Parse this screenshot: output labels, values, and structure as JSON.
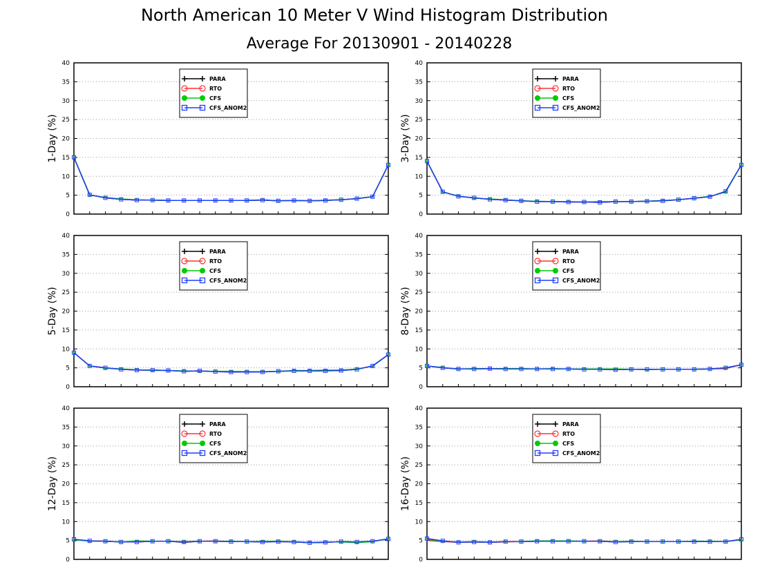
{
  "title": "North American 10 Meter V Wind Histogram Distribution",
  "subtitle": "Average For 20130901 - 20140228",
  "colors": {
    "PARA": "#000000",
    "RTO": "#ff3030",
    "CFS": "#00cc00",
    "CFS_ANOM2": "#1e3cff"
  },
  "chart_data": [
    {
      "type": "line",
      "ylabel": "1-Day (%)",
      "ylim": [
        0,
        40
      ],
      "yticks": [
        0,
        5,
        10,
        15,
        20,
        25,
        30,
        35,
        40
      ],
      "grid": true,
      "legend": "top-center",
      "x": [
        1,
        2,
        3,
        4,
        5,
        6,
        7,
        8,
        9,
        10,
        11,
        12,
        13,
        14,
        15,
        16,
        17,
        18,
        19,
        20,
        21
      ],
      "series": [
        {
          "name": "PARA",
          "values": [
            15,
            5.1,
            4.3,
            3.9,
            3.7,
            3.7,
            3.6,
            3.6,
            3.6,
            3.6,
            3.6,
            3.6,
            3.7,
            3.5,
            3.6,
            3.5,
            3.6,
            3.8,
            4.1,
            4.6,
            13
          ]
        },
        {
          "name": "RTO",
          "values": [
            15,
            5.1,
            4.3,
            3.9,
            3.7,
            3.7,
            3.6,
            3.6,
            3.6,
            3.6,
            3.6,
            3.6,
            3.7,
            3.5,
            3.6,
            3.5,
            3.6,
            3.8,
            4.1,
            4.6,
            13
          ]
        },
        {
          "name": "CFS",
          "values": [
            15,
            5.0,
            4.4,
            4.0,
            3.8,
            3.7,
            3.6,
            3.6,
            3.6,
            3.6,
            3.6,
            3.6,
            3.8,
            3.5,
            3.6,
            3.5,
            3.7,
            3.8,
            4.1,
            4.6,
            13
          ]
        },
        {
          "name": "CFS_ANOM2",
          "values": [
            15,
            5.1,
            4.3,
            3.9,
            3.7,
            3.7,
            3.6,
            3.6,
            3.6,
            3.6,
            3.6,
            3.6,
            3.7,
            3.5,
            3.6,
            3.5,
            3.6,
            3.8,
            4.1,
            4.6,
            13
          ]
        }
      ]
    },
    {
      "type": "line",
      "ylabel": "3-Day (%)",
      "ylim": [
        0,
        40
      ],
      "yticks": [
        0,
        5,
        10,
        15,
        20,
        25,
        30,
        35,
        40
      ],
      "grid": true,
      "legend": "top-center",
      "x": [
        1,
        2,
        3,
        4,
        5,
        6,
        7,
        8,
        9,
        10,
        11,
        12,
        13,
        14,
        15,
        16,
        17,
        18,
        19,
        20,
        21
      ],
      "series": [
        {
          "name": "PARA",
          "values": [
            14,
            5.9,
            4.7,
            4.3,
            3.9,
            3.7,
            3.5,
            3.3,
            3.3,
            3.2,
            3.2,
            3.1,
            3.3,
            3.3,
            3.4,
            3.5,
            3.8,
            4.2,
            4.6,
            6.0,
            13
          ]
        },
        {
          "name": "RTO",
          "values": [
            14,
            5.9,
            4.7,
            4.3,
            3.9,
            3.7,
            3.5,
            3.3,
            3.3,
            3.2,
            3.2,
            3.1,
            3.3,
            3.3,
            3.4,
            3.5,
            3.8,
            4.2,
            4.6,
            6.0,
            13
          ]
        },
        {
          "name": "CFS",
          "values": [
            14,
            5.8,
            4.8,
            4.2,
            4.0,
            3.8,
            3.5,
            3.4,
            3.3,
            3.3,
            3.2,
            3.3,
            3.3,
            3.3,
            3.4,
            3.6,
            3.8,
            4.2,
            4.7,
            5.8,
            13
          ]
        },
        {
          "name": "CFS_ANOM2",
          "values": [
            14,
            5.9,
            4.7,
            4.3,
            3.9,
            3.7,
            3.5,
            3.3,
            3.3,
            3.2,
            3.2,
            3.1,
            3.3,
            3.3,
            3.4,
            3.5,
            3.8,
            4.2,
            4.6,
            6.0,
            13
          ]
        }
      ]
    },
    {
      "type": "line",
      "ylabel": "5-Day (%)",
      "ylim": [
        0,
        40
      ],
      "yticks": [
        0,
        5,
        10,
        15,
        20,
        25,
        30,
        35,
        40
      ],
      "grid": true,
      "legend": "top-center",
      "x": [
        1,
        2,
        3,
        4,
        5,
        6,
        7,
        8,
        9,
        10,
        11,
        12,
        13,
        14,
        15,
        16,
        17,
        18,
        19,
        20,
        21
      ],
      "series": [
        {
          "name": "PARA",
          "values": [
            9,
            5.5,
            5.0,
            4.6,
            4.4,
            4.4,
            4.3,
            4.1,
            4.2,
            4.0,
            3.9,
            3.9,
            3.9,
            4.1,
            4.2,
            4.2,
            4.2,
            4.3,
            4.6,
            5.5,
            8.5
          ]
        },
        {
          "name": "RTO",
          "values": [
            9,
            5.5,
            5.0,
            4.6,
            4.4,
            4.4,
            4.3,
            4.1,
            4.2,
            4.0,
            4.0,
            4.0,
            3.9,
            4.1,
            4.2,
            4.2,
            4.2,
            4.4,
            4.6,
            5.5,
            8.5
          ]
        },
        {
          "name": "CFS",
          "values": [
            9,
            5.5,
            4.9,
            4.7,
            4.5,
            4.3,
            4.3,
            4.2,
            4.1,
            4.1,
            4.1,
            4.0,
            4.0,
            4.1,
            4.3,
            4.3,
            4.4,
            4.4,
            4.7,
            5.4,
            8.5
          ]
        },
        {
          "name": "CFS_ANOM2",
          "values": [
            9,
            5.5,
            5.0,
            4.6,
            4.4,
            4.4,
            4.3,
            4.1,
            4.2,
            4.0,
            3.9,
            3.9,
            3.9,
            4.1,
            4.2,
            4.2,
            4.2,
            4.3,
            4.6,
            5.5,
            8.5
          ]
        }
      ]
    },
    {
      "type": "line",
      "ylabel": "8-Day (%)",
      "ylim": [
        0,
        40
      ],
      "yticks": [
        0,
        5,
        10,
        15,
        20,
        25,
        30,
        35,
        40
      ],
      "grid": true,
      "legend": "top-center",
      "x": [
        1,
        2,
        3,
        4,
        5,
        6,
        7,
        8,
        9,
        10,
        11,
        12,
        13,
        14,
        15,
        16,
        17,
        18,
        19,
        20,
        21
      ],
      "series": [
        {
          "name": "PARA",
          "values": [
            5.5,
            5.0,
            4.7,
            4.7,
            4.8,
            4.7,
            4.7,
            4.7,
            4.7,
            4.7,
            4.6,
            4.6,
            4.5,
            4.6,
            4.6,
            4.6,
            4.6,
            4.6,
            4.7,
            5.0,
            5.8
          ]
        },
        {
          "name": "RTO",
          "values": [
            5.5,
            5.0,
            4.7,
            4.7,
            4.8,
            4.7,
            4.7,
            4.7,
            4.7,
            4.7,
            4.6,
            4.6,
            4.5,
            4.6,
            4.6,
            4.6,
            4.6,
            4.6,
            4.7,
            4.8,
            5.8
          ]
        },
        {
          "name": "CFS",
          "values": [
            5.5,
            5.1,
            4.7,
            4.8,
            4.8,
            4.8,
            4.8,
            4.7,
            4.8,
            4.7,
            4.7,
            4.7,
            4.7,
            4.6,
            4.5,
            4.6,
            4.6,
            4.6,
            4.7,
            5.0,
            5.8
          ]
        },
        {
          "name": "CFS_ANOM2",
          "values": [
            5.5,
            5.0,
            4.7,
            4.7,
            4.8,
            4.7,
            4.7,
            4.7,
            4.7,
            4.7,
            4.6,
            4.6,
            4.5,
            4.6,
            4.6,
            4.6,
            4.6,
            4.6,
            4.7,
            5.0,
            5.8
          ]
        }
      ]
    },
    {
      "type": "line",
      "ylabel": "12-Day (%)",
      "ylim": [
        0,
        40
      ],
      "yticks": [
        0,
        5,
        10,
        15,
        20,
        25,
        30,
        35,
        40
      ],
      "grid": true,
      "legend": "top-center",
      "x": [
        1,
        2,
        3,
        4,
        5,
        6,
        7,
        8,
        9,
        10,
        11,
        12,
        13,
        14,
        15,
        16,
        17,
        18,
        19,
        20,
        21
      ],
      "series": [
        {
          "name": "PARA",
          "values": [
            5.3,
            4.9,
            4.8,
            4.6,
            4.6,
            4.8,
            4.8,
            4.5,
            4.8,
            4.8,
            4.7,
            4.7,
            4.6,
            4.7,
            4.6,
            4.4,
            4.5,
            4.7,
            4.6,
            4.8,
            5.4
          ]
        },
        {
          "name": "RTO",
          "values": [
            5.3,
            4.9,
            4.8,
            4.6,
            4.6,
            4.8,
            4.8,
            4.6,
            4.8,
            4.9,
            4.7,
            4.7,
            4.7,
            4.7,
            4.6,
            4.5,
            4.5,
            4.7,
            4.5,
            4.8,
            5.4
          ]
        },
        {
          "name": "CFS",
          "values": [
            5.2,
            4.8,
            4.8,
            4.6,
            4.9,
            4.8,
            4.8,
            4.7,
            4.8,
            4.8,
            4.8,
            4.7,
            4.8,
            4.8,
            4.7,
            4.5,
            4.6,
            4.6,
            4.4,
            4.7,
            5.4
          ]
        },
        {
          "name": "CFS_ANOM2",
          "values": [
            5.3,
            4.9,
            4.8,
            4.6,
            4.6,
            4.8,
            4.8,
            4.6,
            4.8,
            4.8,
            4.7,
            4.7,
            4.6,
            4.7,
            4.6,
            4.4,
            4.5,
            4.7,
            4.6,
            4.8,
            5.4
          ]
        }
      ]
    },
    {
      "type": "line",
      "ylabel": "16-Day (%)",
      "ylim": [
        0,
        40
      ],
      "yticks": [
        0,
        5,
        10,
        15,
        20,
        25,
        30,
        35,
        40
      ],
      "grid": true,
      "legend": "top-center",
      "x": [
        1,
        2,
        3,
        4,
        5,
        6,
        7,
        8,
        9,
        10,
        11,
        12,
        13,
        14,
        15,
        16,
        17,
        18,
        19,
        20,
        21
      ],
      "series": [
        {
          "name": "PARA",
          "values": [
            5.5,
            4.9,
            4.5,
            4.6,
            4.5,
            4.7,
            4.7,
            4.8,
            4.8,
            4.8,
            4.8,
            4.8,
            4.6,
            4.7,
            4.7,
            4.7,
            4.7,
            4.7,
            4.7,
            4.7,
            5.3
          ]
        },
        {
          "name": "RTO",
          "values": [
            5.0,
            4.7,
            4.5,
            4.6,
            4.5,
            4.6,
            4.7,
            4.8,
            4.9,
            4.8,
            4.8,
            4.9,
            4.7,
            4.7,
            4.7,
            4.7,
            4.7,
            4.7,
            4.7,
            4.7,
            5.2
          ]
        },
        {
          "name": "CFS",
          "values": [
            5.3,
            4.8,
            4.6,
            4.7,
            4.6,
            4.7,
            4.7,
            4.9,
            4.9,
            4.9,
            4.8,
            4.8,
            4.7,
            4.8,
            4.7,
            4.7,
            4.7,
            4.8,
            4.8,
            4.7,
            5.2
          ]
        },
        {
          "name": "CFS_ANOM2",
          "values": [
            5.5,
            4.9,
            4.5,
            4.6,
            4.5,
            4.7,
            4.7,
            4.8,
            4.8,
            4.8,
            4.8,
            4.8,
            4.6,
            4.7,
            4.7,
            4.7,
            4.7,
            4.7,
            4.7,
            4.7,
            5.3
          ]
        }
      ]
    }
  ]
}
